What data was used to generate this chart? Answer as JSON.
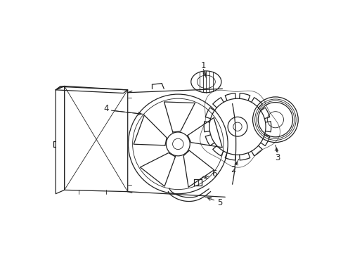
{
  "background": "#ffffff",
  "line_color": "#222222",
  "text_color": "#222222",
  "figsize": [
    4.89,
    3.6
  ],
  "dpi": 100,
  "lw": 0.9,
  "lw_thin": 0.6
}
